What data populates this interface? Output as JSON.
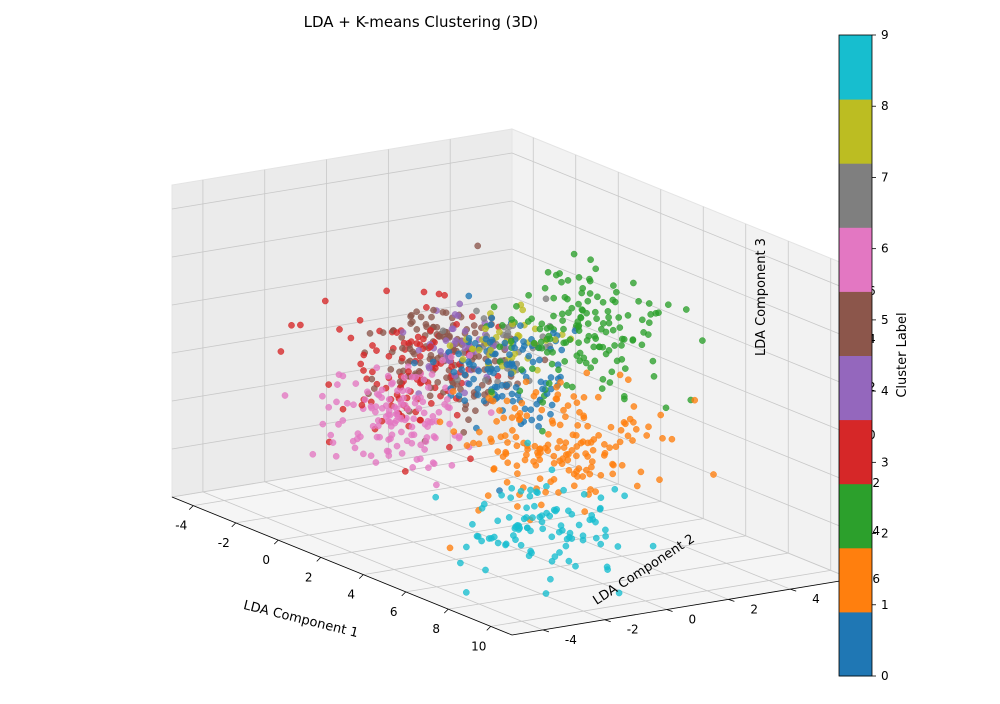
{
  "chart_data": {
    "type": "scatter",
    "projection": "3d",
    "title": "LDA + K-means Clustering (3D)",
    "xlabel": "LDA Component 1",
    "ylabel": "LDA Component 2",
    "zlabel": "LDA Component 3",
    "xlim": [
      -5,
      11
    ],
    "ylim": [
      -5,
      6
    ],
    "zlim": [
      -6,
      7
    ],
    "x_ticks": [
      "-4",
      "-2",
      "0",
      "2",
      "4",
      "6",
      "8",
      "10"
    ],
    "y_ticks": [
      "-4",
      "-2",
      "0",
      "2",
      "4"
    ],
    "z_ticks": [
      "-6",
      "-4",
      "-2",
      "0",
      "2",
      "4",
      "6"
    ],
    "grid": true,
    "colorbar": {
      "label": "Cluster Label",
      "ticks": [
        "0",
        "1",
        "2",
        "3",
        "4",
        "5",
        "6",
        "7",
        "8",
        "9"
      ],
      "colors": [
        "#1f77b4",
        "#ff7f0e",
        "#2ca02c",
        "#d62728",
        "#9467bd",
        "#8c564b",
        "#e377c2",
        "#7f7f7f",
        "#bcbd22",
        "#17becf"
      ]
    },
    "clusters": [
      {
        "label": 0,
        "color": "#1f77b4",
        "center": [
          2.0,
          1.0,
          0.5
        ],
        "spread": [
          1.0,
          1.0,
          1.2
        ],
        "count": 110
      },
      {
        "label": 1,
        "color": "#ff7f0e",
        "center": [
          6.0,
          0.0,
          -1.0
        ],
        "spread": [
          1.4,
          1.3,
          1.1
        ],
        "count": 170
      },
      {
        "label": 2,
        "color": "#2ca02c",
        "center": [
          3.5,
          2.5,
          2.5
        ],
        "spread": [
          1.2,
          1.0,
          1.2
        ],
        "count": 150
      },
      {
        "label": 3,
        "color": "#d62728",
        "center": [
          -2.0,
          0.5,
          -1.0
        ],
        "spread": [
          1.2,
          1.2,
          1.2
        ],
        "count": 110
      },
      {
        "label": 4,
        "color": "#9467bd",
        "center": [
          -0.5,
          1.0,
          0.5
        ],
        "spread": [
          0.7,
          0.7,
          0.8
        ],
        "count": 40
      },
      {
        "label": 5,
        "color": "#8c564b",
        "center": [
          -2.0,
          2.0,
          -0.5
        ],
        "spread": [
          1.0,
          1.0,
          1.1
        ],
        "count": 150
      },
      {
        "label": 6,
        "color": "#e377c2",
        "center": [
          0.0,
          -1.0,
          -1.5
        ],
        "spread": [
          1.0,
          1.0,
          0.9
        ],
        "count": 140
      },
      {
        "label": 7,
        "color": "#7f7f7f",
        "center": [
          0.5,
          2.0,
          0.5
        ],
        "spread": [
          0.8,
          0.8,
          0.8
        ],
        "count": 40
      },
      {
        "label": 8,
        "color": "#bcbd22",
        "center": [
          1.5,
          1.5,
          1.0
        ],
        "spread": [
          0.8,
          0.8,
          0.8
        ],
        "count": 40
      },
      {
        "label": 9,
        "color": "#17becf",
        "center": [
          8.0,
          -2.0,
          -3.0
        ],
        "spread": [
          1.1,
          1.0,
          1.1
        ],
        "count": 100
      }
    ]
  }
}
